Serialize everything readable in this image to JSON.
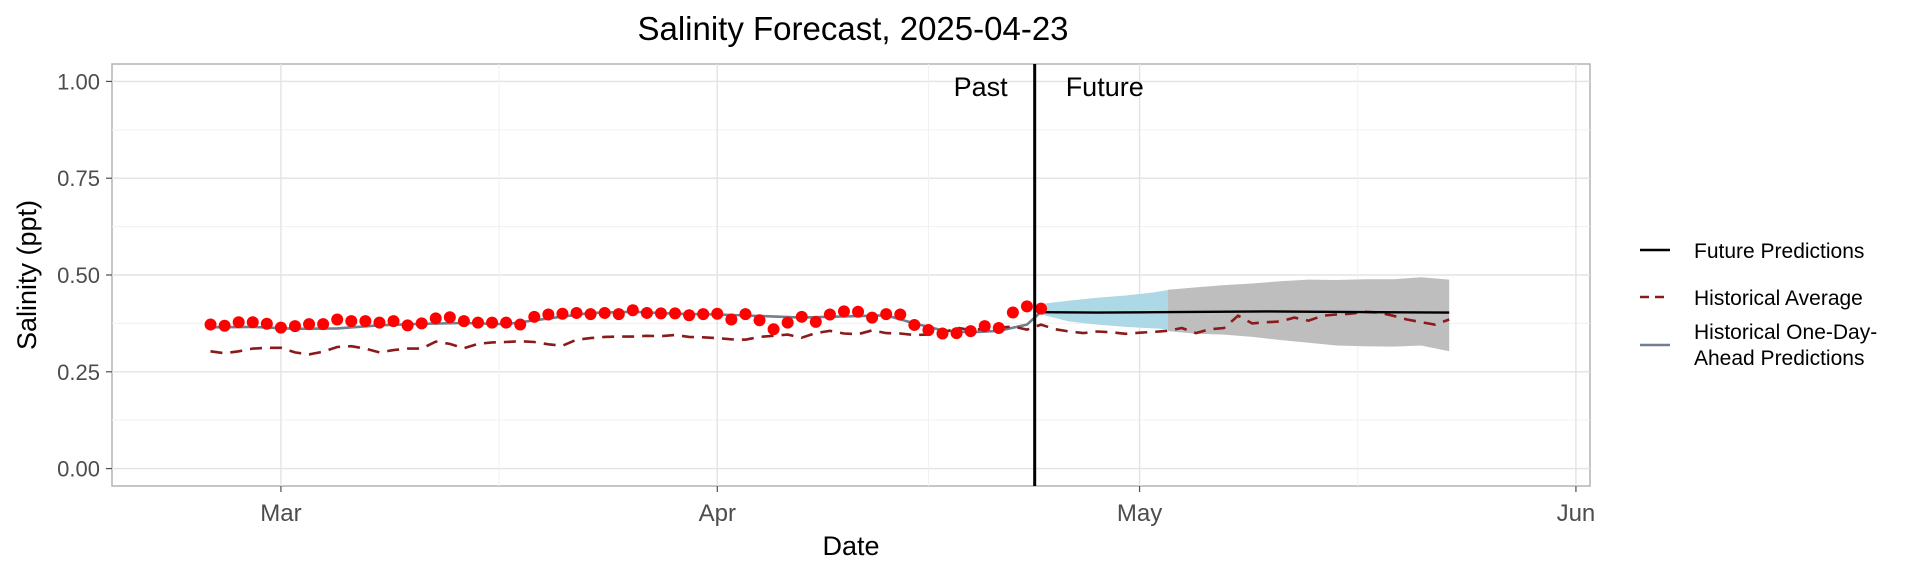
{
  "chart_data": {
    "type": "line",
    "title": "Salinity Forecast, 2025-04-23",
    "xlabel": "Date",
    "ylabel": "Salinity (ppt)",
    "xlim": [
      "2025-02-17",
      "2025-06-02"
    ],
    "ylim": [
      -0.045,
      1.045
    ],
    "y_ticks": [
      0,
      0.25,
      0.5,
      0.75,
      1.0
    ],
    "y_tick_labels": [
      "0.00",
      "0.25",
      "0.50",
      "0.75",
      "1.00"
    ],
    "x_ticks": [
      "2025-03-01",
      "2025-04-01",
      "2025-05-01",
      "2025-06-01"
    ],
    "x_tick_labels": [
      "Mar",
      "Apr",
      "May",
      "Jun"
    ],
    "grid": true,
    "legend_position": "right",
    "forecast_date": "2025-04-23",
    "annotations": {
      "past": "Past",
      "future": "Future"
    },
    "colors": {
      "observed": "#ff0000",
      "historical_average": "#8b1a1a",
      "one_day_ahead": "#708090",
      "future": "#000000",
      "band_near": "#add8e6",
      "band_far": "#bebebe"
    },
    "legend": [
      {
        "label": "Future Predictions",
        "style": "solid",
        "color": "#000000"
      },
      {
        "label": "Historical Average",
        "style": "dashed",
        "color": "#8b1a1a"
      },
      {
        "label_lines": [
          "Historical One-Day-",
          "Ahead Predictions"
        ],
        "style": "solid",
        "color": "#708090"
      }
    ],
    "observed": {
      "x": [
        "2025-02-24",
        "2025-02-25",
        "2025-02-26",
        "2025-02-27",
        "2025-02-28",
        "2025-03-01",
        "2025-03-02",
        "2025-03-03",
        "2025-03-04",
        "2025-03-05",
        "2025-03-06",
        "2025-03-07",
        "2025-03-08",
        "2025-03-09",
        "2025-03-10",
        "2025-03-11",
        "2025-03-12",
        "2025-03-13",
        "2025-03-14",
        "2025-03-15",
        "2025-03-16",
        "2025-03-17",
        "2025-03-18",
        "2025-03-19",
        "2025-03-20",
        "2025-03-21",
        "2025-03-22",
        "2025-03-23",
        "2025-03-24",
        "2025-03-25",
        "2025-03-26",
        "2025-03-27",
        "2025-03-28",
        "2025-03-29",
        "2025-03-30",
        "2025-03-31",
        "2025-04-01",
        "2025-04-02",
        "2025-04-03",
        "2025-04-04",
        "2025-04-05",
        "2025-04-06",
        "2025-04-07",
        "2025-04-08",
        "2025-04-09",
        "2025-04-10",
        "2025-04-11",
        "2025-04-12",
        "2025-04-13",
        "2025-04-14",
        "2025-04-15",
        "2025-04-16",
        "2025-04-17",
        "2025-04-18",
        "2025-04-19",
        "2025-04-20",
        "2025-04-21",
        "2025-04-22",
        "2025-04-23"
      ],
      "y": [
        0.372,
        0.369,
        0.378,
        0.378,
        0.374,
        0.364,
        0.368,
        0.373,
        0.373,
        0.385,
        0.381,
        0.381,
        0.377,
        0.381,
        0.37,
        0.375,
        0.388,
        0.391,
        0.381,
        0.377,
        0.377,
        0.377,
        0.372,
        0.392,
        0.398,
        0.4,
        0.402,
        0.399,
        0.402,
        0.399,
        0.409,
        0.402,
        0.401,
        0.401,
        0.396,
        0.399,
        0.4,
        0.385,
        0.399,
        0.383,
        0.36,
        0.377,
        0.392,
        0.379,
        0.398,
        0.406,
        0.405,
        0.39,
        0.399,
        0.398,
        0.371,
        0.358,
        0.349,
        0.35,
        0.355,
        0.368,
        0.363,
        0.403,
        0.419
      ]
    },
    "observed_current": {
      "x": "2025-04-24",
      "y": 0.413
    },
    "historical_average": {
      "x": [
        "2025-02-24",
        "2025-02-25",
        "2025-02-26",
        "2025-02-27",
        "2025-02-28",
        "2025-03-01",
        "2025-03-02",
        "2025-03-03",
        "2025-03-04",
        "2025-03-05",
        "2025-03-06",
        "2025-03-07",
        "2025-03-08",
        "2025-03-09",
        "2025-03-10",
        "2025-03-11",
        "2025-03-12",
        "2025-03-13",
        "2025-03-14",
        "2025-03-15",
        "2025-03-16",
        "2025-03-17",
        "2025-03-18",
        "2025-03-19",
        "2025-03-20",
        "2025-03-21",
        "2025-03-22",
        "2025-03-23",
        "2025-03-24",
        "2025-03-25",
        "2025-03-26",
        "2025-03-27",
        "2025-03-28",
        "2025-03-29",
        "2025-03-30",
        "2025-03-31",
        "2025-04-01",
        "2025-04-02",
        "2025-04-03",
        "2025-04-04",
        "2025-04-05",
        "2025-04-06",
        "2025-04-07",
        "2025-04-08",
        "2025-04-09",
        "2025-04-10",
        "2025-04-11",
        "2025-04-12",
        "2025-04-13",
        "2025-04-14",
        "2025-04-15",
        "2025-04-16",
        "2025-04-17",
        "2025-04-18",
        "2025-04-19",
        "2025-04-20",
        "2025-04-21",
        "2025-04-22",
        "2025-04-23",
        "2025-04-24",
        "2025-04-25",
        "2025-04-26",
        "2025-04-27",
        "2025-04-28",
        "2025-04-29",
        "2025-04-30",
        "2025-05-01",
        "2025-05-02",
        "2025-05-03",
        "2025-05-04",
        "2025-05-05",
        "2025-05-06",
        "2025-05-07",
        "2025-05-08",
        "2025-05-09",
        "2025-05-10",
        "2025-05-11",
        "2025-05-12",
        "2025-05-13",
        "2025-05-14",
        "2025-05-15",
        "2025-05-16",
        "2025-05-17",
        "2025-05-18",
        "2025-05-19",
        "2025-05-20",
        "2025-05-21",
        "2025-05-22",
        "2025-05-23"
      ],
      "y": [
        0.303,
        0.298,
        0.303,
        0.31,
        0.312,
        0.312,
        0.3,
        0.295,
        0.302,
        0.314,
        0.316,
        0.31,
        0.3,
        0.306,
        0.31,
        0.31,
        0.328,
        0.322,
        0.311,
        0.322,
        0.326,
        0.327,
        0.329,
        0.327,
        0.321,
        0.317,
        0.333,
        0.337,
        0.34,
        0.341,
        0.341,
        0.343,
        0.342,
        0.345,
        0.34,
        0.339,
        0.337,
        0.334,
        0.333,
        0.34,
        0.343,
        0.346,
        0.338,
        0.35,
        0.356,
        0.349,
        0.347,
        0.357,
        0.35,
        0.349,
        0.345,
        0.346,
        0.35,
        0.364,
        0.358,
        0.361,
        0.364,
        0.367,
        0.359,
        0.372,
        0.36,
        0.354,
        0.35,
        0.354,
        0.352,
        0.348,
        0.351,
        0.353,
        0.356,
        0.363,
        0.35,
        0.36,
        0.363,
        0.395,
        0.375,
        0.378,
        0.38,
        0.39,
        0.382,
        0.395,
        0.398,
        0.4,
        0.405,
        0.403,
        0.395,
        0.385,
        0.378,
        0.372,
        0.385
      ]
    },
    "one_day_ahead": {
      "x": [
        "2025-02-24",
        "2025-02-27",
        "2025-03-02",
        "2025-03-05",
        "2025-03-08",
        "2025-03-11",
        "2025-03-14",
        "2025-03-17",
        "2025-03-20",
        "2025-03-23",
        "2025-03-26",
        "2025-03-29",
        "2025-04-01",
        "2025-04-04",
        "2025-04-07",
        "2025-04-10",
        "2025-04-13",
        "2025-04-15",
        "2025-04-17",
        "2025-04-19",
        "2025-04-21",
        "2025-04-23",
        "2025-04-24"
      ],
      "y": [
        0.365,
        0.366,
        0.361,
        0.362,
        0.37,
        0.374,
        0.376,
        0.373,
        0.388,
        0.402,
        0.405,
        0.4,
        0.398,
        0.394,
        0.39,
        0.393,
        0.396,
        0.375,
        0.357,
        0.352,
        0.356,
        0.372,
        0.405
      ]
    },
    "future_predictions": {
      "x": [
        "2025-04-24",
        "2025-04-28",
        "2025-05-02",
        "2025-05-06",
        "2025-05-10",
        "2025-05-14",
        "2025-05-18",
        "2025-05-23"
      ],
      "y": [
        0.404,
        0.403,
        0.404,
        0.405,
        0.406,
        0.405,
        0.404,
        0.403
      ]
    },
    "prediction_band_near": {
      "x": [
        "2025-04-24",
        "2025-04-26",
        "2025-04-28",
        "2025-04-30",
        "2025-05-02",
        "2025-05-03"
      ],
      "lower": [
        0.398,
        0.38,
        0.372,
        0.366,
        0.362,
        0.36
      ],
      "upper": [
        0.425,
        0.434,
        0.441,
        0.447,
        0.455,
        0.461
      ]
    },
    "prediction_band_far": {
      "x": [
        "2025-05-03",
        "2025-05-05",
        "2025-05-07",
        "2025-05-09",
        "2025-05-11",
        "2025-05-13",
        "2025-05-15",
        "2025-05-17",
        "2025-05-19",
        "2025-05-21",
        "2025-05-23"
      ],
      "lower": [
        0.355,
        0.348,
        0.346,
        0.34,
        0.332,
        0.325,
        0.318,
        0.316,
        0.315,
        0.318,
        0.303
      ],
      "upper": [
        0.462,
        0.468,
        0.474,
        0.478,
        0.484,
        0.488,
        0.487,
        0.489,
        0.489,
        0.494,
        0.488
      ]
    }
  }
}
